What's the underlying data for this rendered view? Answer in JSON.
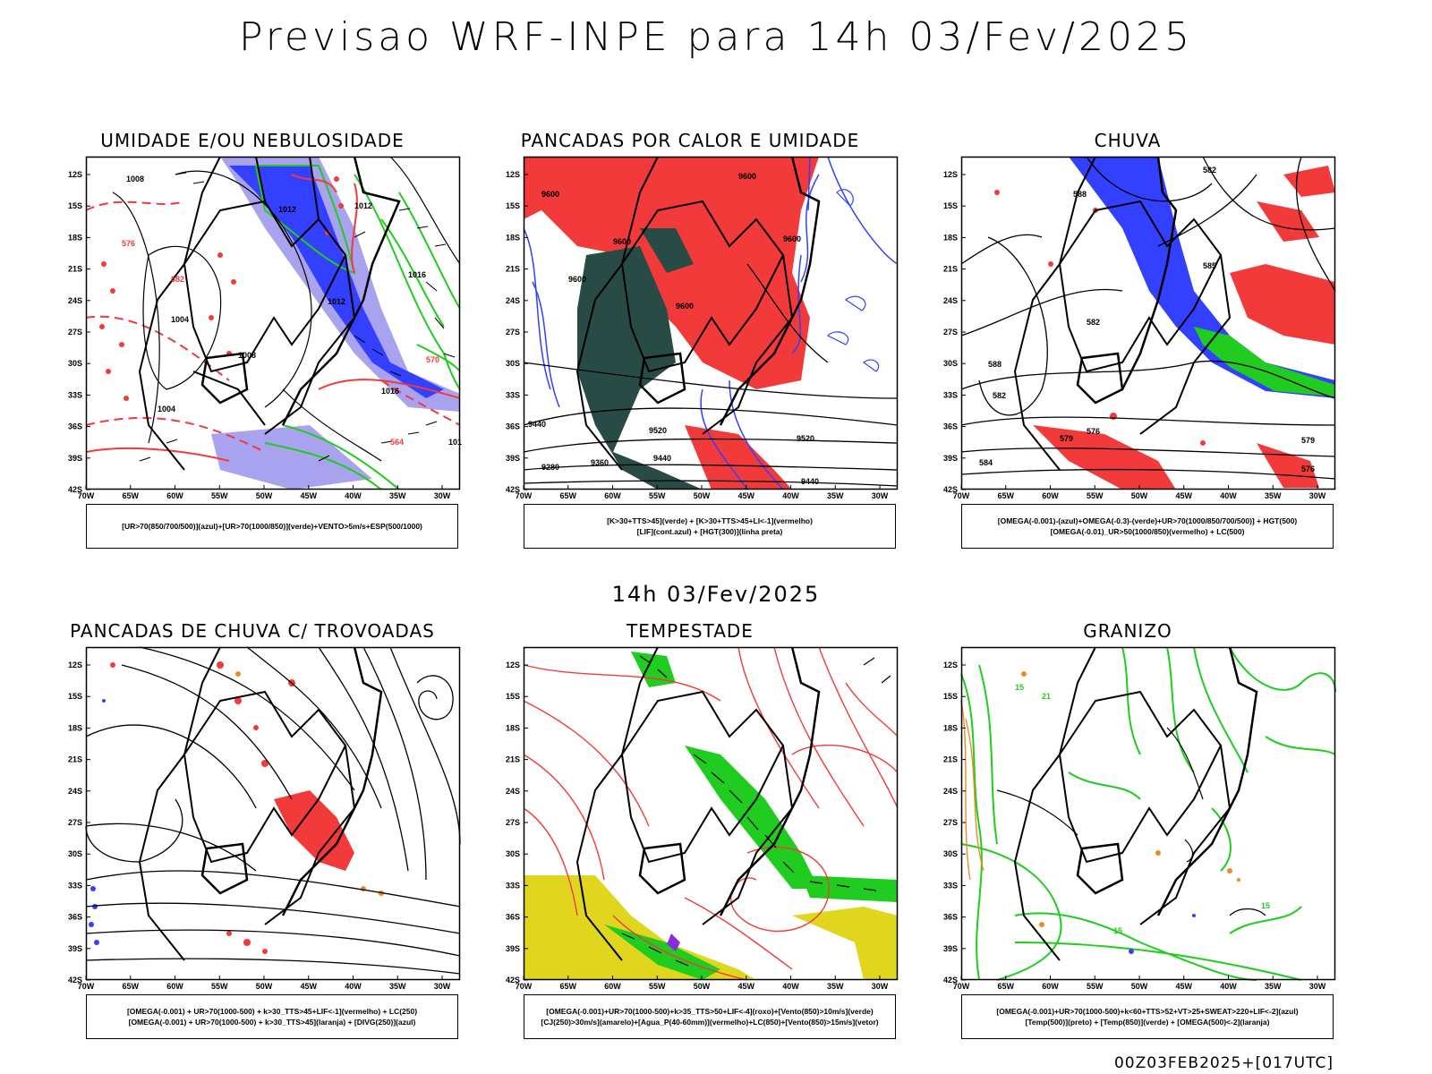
{
  "title": "Previsao WRF-INPE  para 14h 03/Fev/2025",
  "mid_title": "14h 03/Fev/2025",
  "footer": "00Z03FEB2025+[017UTC]",
  "axes": {
    "lat_ticks": [
      "12S",
      "15S",
      "18S",
      "21S",
      "24S",
      "27S",
      "30S",
      "33S",
      "36S",
      "39S",
      "42S"
    ],
    "lon_ticks": [
      "70W",
      "65W",
      "60W",
      "55W",
      "50W",
      "45W",
      "40W",
      "35W",
      "30W"
    ]
  },
  "colors": {
    "blue": "#3340ff",
    "lightblue": "#a9a3ef",
    "green": "#1fcc1f",
    "red": "#f23a3a",
    "darkgreen": "#284b45",
    "yellow": "#e0d61e",
    "orange": "#f08a24",
    "black": "#000000"
  },
  "panels": [
    {
      "title": "UMIDADE E/OU NEBULOSIDADE",
      "legend": [
        "[UR>70(850/700/500)](azul)+[UR>70(1000/850)](verde)+VENTO>5m/s+ESP(500/1000)"
      ],
      "labels": [
        "1008",
        "1004",
        "1012",
        "1016",
        "576",
        "570",
        "582",
        "564",
        "1008",
        "1012",
        "1004",
        "1016",
        "1012",
        "101"
      ]
    },
    {
      "title": "PANCADAS POR CALOR E UMIDADE",
      "legend": [
        "[K>30+TTS>45](verde) + [K>30+TTS>45+LI<-1](vermelho)",
        "[LIF](cont.azul) + [HGT(300)](linha preta)"
      ],
      "labels": [
        "9600",
        "9600",
        "9600",
        "9600",
        "9600",
        "9600",
        "9520",
        "9440",
        "9520",
        "9440",
        "9360",
        "9280",
        "9440"
      ]
    },
    {
      "title": "CHUVA",
      "legend": [
        "[OMEGA(-0.001)-(azul)+OMEGA(-0.3)-(verde)+UR>70(1000/850/700/500)] + HGT(500)",
        "[OMEGA(-0.01)_UR>50(1000/850)(vermelho) + LC(500)"
      ],
      "labels": [
        "582",
        "588",
        "585",
        "582",
        "588",
        "582",
        "579",
        "576",
        "579",
        "576",
        "584"
      ]
    },
    {
      "title": "PANCADAS DE CHUVA C/ TROVOADAS",
      "legend": [
        "[OMEGA(-0.001) + UR>70(1000-500) + k>30_TTS>45+LIF<-1](vermelho) + LC(250)",
        "[OMEGA(-0.001) + UR>70(1000-500) + k>30_TTS>45](laranja) + [DIVG(250)](azul)"
      ],
      "labels": []
    },
    {
      "title": "TEMPESTADE",
      "legend": [
        "[OMEGA(-0.001)+UR>70(1000-500)+k>35_TTS>50+LIF<-4](roxo)+[Vento(850)>10m/s](verde)",
        "[CJ(250)>30m/s](amarelo)+[Agua_P(40-60mm)](vermelho)+LC(850)+[Vento(850)>15m/s](vetor)"
      ],
      "labels": []
    },
    {
      "title": "GRANIZO",
      "legend": [
        "[OMEGA(-0.001)+UR>70(1000-500)+k<60+TTS>52+VT>25+SWEAT>220+LIF<-2](azul)",
        "[Temp(500)](preto) + [Temp(850)](verde) + [OMEGA(500)<-2](laranja)"
      ],
      "labels": [
        "15",
        "15",
        "15",
        "21"
      ]
    }
  ]
}
